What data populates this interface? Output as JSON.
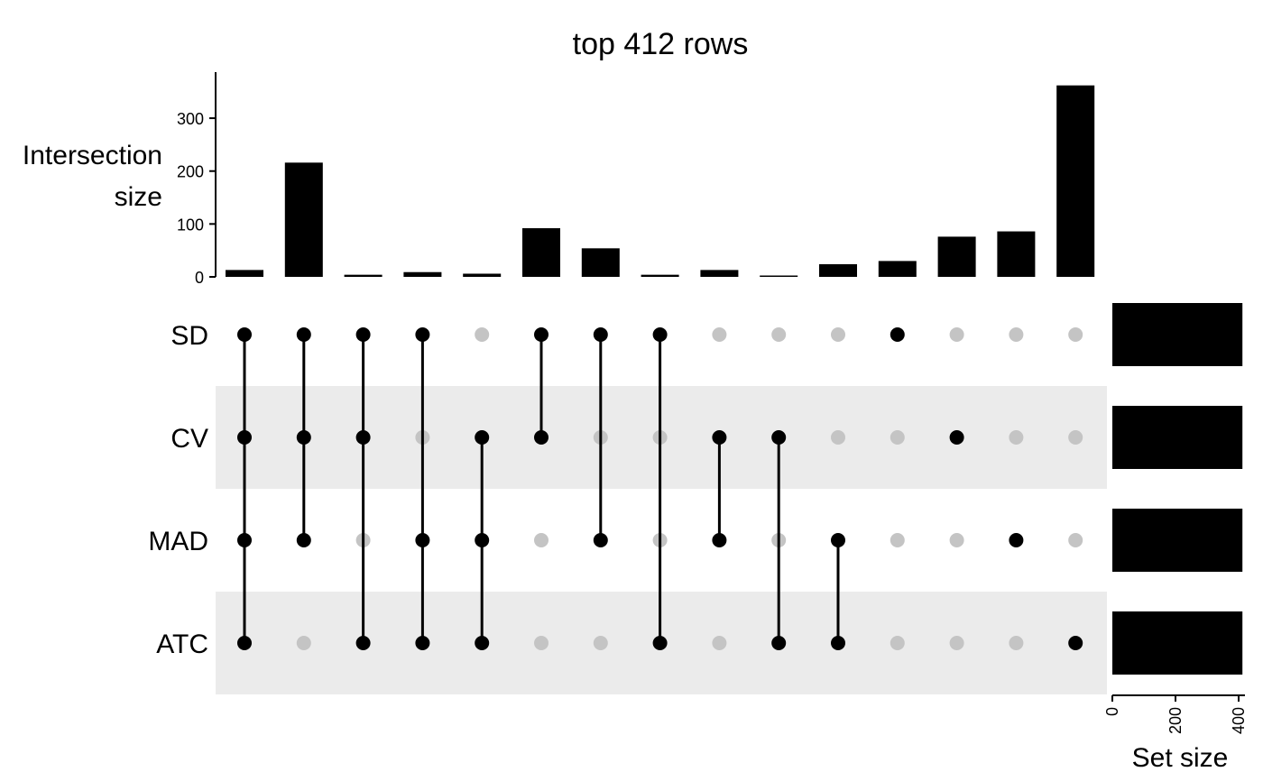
{
  "chart_data": {
    "type": "upset",
    "title": "top 412 rows",
    "ylabel": [
      "Intersection",
      "size"
    ],
    "set_size_label": "Set size",
    "sets": [
      "SD",
      "CV",
      "MAD",
      "ATC"
    ],
    "set_sizes": [
      412,
      412,
      412,
      412
    ],
    "set_size_ticks": [
      "0",
      "200",
      "400"
    ],
    "set_size_max": 420,
    "intersection_ylim": [
      0,
      370
    ],
    "intersection_ticks": [
      0,
      100,
      200,
      300
    ],
    "intersection_tick_labels": [
      "0",
      "100",
      "200",
      "300"
    ],
    "intersections": [
      {
        "members": [
          "SD",
          "CV",
          "MAD",
          "ATC"
        ],
        "size": 13
      },
      {
        "members": [
          "SD",
          "CV",
          "MAD"
        ],
        "size": 216
      },
      {
        "members": [
          "SD",
          "CV",
          "ATC"
        ],
        "size": 4
      },
      {
        "members": [
          "SD",
          "MAD",
          "ATC"
        ],
        "size": 9
      },
      {
        "members": [
          "CV",
          "MAD",
          "ATC"
        ],
        "size": 6
      },
      {
        "members": [
          "SD",
          "CV"
        ],
        "size": 92
      },
      {
        "members": [
          "SD",
          "MAD"
        ],
        "size": 54
      },
      {
        "members": [
          "SD",
          "ATC"
        ],
        "size": 4
      },
      {
        "members": [
          "CV",
          "MAD"
        ],
        "size": 13
      },
      {
        "members": [
          "CV",
          "ATC"
        ],
        "size": 2
      },
      {
        "members": [
          "MAD",
          "ATC"
        ],
        "size": 24
      },
      {
        "members": [
          "SD"
        ],
        "size": 30
      },
      {
        "members": [
          "CV"
        ],
        "size": 76
      },
      {
        "members": [
          "MAD"
        ],
        "size": 86
      },
      {
        "members": [
          "ATC"
        ],
        "size": 362
      }
    ],
    "colors": {
      "active": "#000000",
      "inactive": "#c4c4c4",
      "stripe": "#ebebeb",
      "bar": "#000000"
    }
  }
}
